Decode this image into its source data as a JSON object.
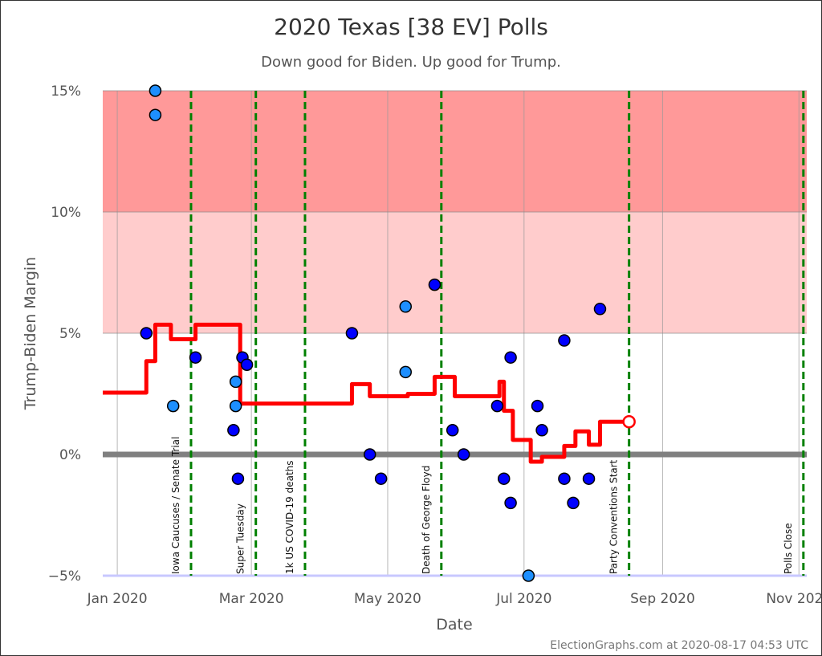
{
  "chart_data": {
    "type": "scatter",
    "title": "2020 Texas [38 EV] Polls",
    "subtitle": "Down good for Biden. Up good for Trump.",
    "xlabel": "Date",
    "ylabel": "Trump-Biden Margin",
    "footer": "ElectionGraphs.com at 2020-08-17 04:53 UTC",
    "xlim": [
      "2019-12-25T12:00",
      "2020-11-04T12:00"
    ],
    "ylim": [
      -5,
      15
    ],
    "x_ticks": [
      {
        "date": "2020-01-01",
        "label": "Jan 2020"
      },
      {
        "date": "2020-03-01",
        "label": "Mar 2020"
      },
      {
        "date": "2020-05-01",
        "label": "May 2020"
      },
      {
        "date": "2020-07-01",
        "label": "Jul 2020"
      },
      {
        "date": "2020-09-01",
        "label": "Sep 2020"
      },
      {
        "date": "2020-11-01",
        "label": "Nov 2020"
      }
    ],
    "y_ticks": [
      {
        "value": 15,
        "label": "15%"
      },
      {
        "value": 10,
        "label": "10%"
      },
      {
        "value": 5,
        "label": "5%"
      },
      {
        "value": 0,
        "label": "0%"
      },
      {
        "value": -5,
        "label": "−5%"
      }
    ],
    "grid": true,
    "bands": [
      {
        "from": 10,
        "to": 15,
        "color": "#ff9999"
      },
      {
        "from": 5,
        "to": 10,
        "color": "#ffcccc"
      }
    ],
    "colors": {
      "poll_dark": "#0000ff",
      "poll_light": "#1e8fff",
      "average": "#ff0000",
      "event": "#008000",
      "zero_line": "#808080",
      "bottom_line": "#c8c8ff"
    },
    "polls": [
      {
        "date": "2020-01-14",
        "margin": 5.0,
        "shade": "dark"
      },
      {
        "date": "2020-01-18",
        "margin": 15.0,
        "shade": "light"
      },
      {
        "date": "2020-01-18",
        "margin": 14.0,
        "shade": "light"
      },
      {
        "date": "2020-01-26",
        "margin": 2.0,
        "shade": "light"
      },
      {
        "date": "2020-02-05",
        "margin": 4.0,
        "shade": "dark"
      },
      {
        "date": "2020-02-22",
        "margin": 1.0,
        "shade": "dark"
      },
      {
        "date": "2020-02-23",
        "margin": 3.0,
        "shade": "light"
      },
      {
        "date": "2020-02-23",
        "margin": 2.0,
        "shade": "light"
      },
      {
        "date": "2020-02-24",
        "margin": -1.0,
        "shade": "dark"
      },
      {
        "date": "2020-02-26",
        "margin": 4.0,
        "shade": "dark"
      },
      {
        "date": "2020-02-28",
        "margin": 3.7,
        "shade": "dark"
      },
      {
        "date": "2020-04-15",
        "margin": 5.0,
        "shade": "dark"
      },
      {
        "date": "2020-04-23",
        "margin": 0.0,
        "shade": "dark"
      },
      {
        "date": "2020-04-28",
        "margin": -1.0,
        "shade": "dark"
      },
      {
        "date": "2020-05-09",
        "margin": 6.1,
        "shade": "light"
      },
      {
        "date": "2020-05-09",
        "margin": 3.4,
        "shade": "light"
      },
      {
        "date": "2020-05-22",
        "margin": 7.0,
        "shade": "dark"
      },
      {
        "date": "2020-05-30",
        "margin": 1.0,
        "shade": "dark"
      },
      {
        "date": "2020-06-04",
        "margin": 0.0,
        "shade": "dark"
      },
      {
        "date": "2020-06-19",
        "margin": 2.0,
        "shade": "dark"
      },
      {
        "date": "2020-06-22",
        "margin": -1.0,
        "shade": "dark"
      },
      {
        "date": "2020-06-25",
        "margin": 4.0,
        "shade": "dark"
      },
      {
        "date": "2020-06-25",
        "margin": -2.0,
        "shade": "dark"
      },
      {
        "date": "2020-07-03",
        "margin": -5.0,
        "shade": "light"
      },
      {
        "date": "2020-07-07",
        "margin": 2.0,
        "shade": "dark"
      },
      {
        "date": "2020-07-09",
        "margin": 1.0,
        "shade": "dark"
      },
      {
        "date": "2020-07-19",
        "margin": 4.7,
        "shade": "dark"
      },
      {
        "date": "2020-07-19",
        "margin": -1.0,
        "shade": "dark"
      },
      {
        "date": "2020-07-23",
        "margin": -2.0,
        "shade": "dark"
      },
      {
        "date": "2020-07-30",
        "margin": -1.0,
        "shade": "dark"
      },
      {
        "date": "2020-08-04",
        "margin": 6.0,
        "shade": "dark"
      }
    ],
    "average": [
      {
        "date": "2019-12-25T12:00",
        "margin": 2.55
      },
      {
        "date": "2020-01-14",
        "margin": 3.85
      },
      {
        "date": "2020-01-18",
        "margin": 5.35
      },
      {
        "date": "2020-01-25",
        "margin": 4.75
      },
      {
        "date": "2020-02-05",
        "margin": 5.35
      },
      {
        "date": "2020-02-25",
        "margin": 2.1
      },
      {
        "date": "2020-04-15",
        "margin": 2.9
      },
      {
        "date": "2020-04-23",
        "margin": 2.4
      },
      {
        "date": "2020-05-10",
        "margin": 2.5
      },
      {
        "date": "2020-05-22",
        "margin": 3.2
      },
      {
        "date": "2020-05-31",
        "margin": 2.4
      },
      {
        "date": "2020-06-20",
        "margin": 3.0
      },
      {
        "date": "2020-06-22",
        "margin": 1.8
      },
      {
        "date": "2020-06-26",
        "margin": 0.6
      },
      {
        "date": "2020-07-04",
        "margin": -0.3
      },
      {
        "date": "2020-07-09",
        "margin": -0.1
      },
      {
        "date": "2020-07-19",
        "margin": 0.35
      },
      {
        "date": "2020-07-24",
        "margin": 0.95
      },
      {
        "date": "2020-07-30",
        "margin": 0.4
      },
      {
        "date": "2020-08-04",
        "margin": 1.35
      },
      {
        "date": "2020-08-17",
        "margin": 1.35
      }
    ],
    "events": [
      {
        "date": "2020-02-03",
        "label": "Iowa Caucuses / Senate Trial"
      },
      {
        "date": "2020-03-03",
        "label": "Super Tuesday"
      },
      {
        "date": "2020-03-25",
        "label": "1k US COVID-19 deaths"
      },
      {
        "date": "2020-05-25",
        "label": "Death of George Floyd"
      },
      {
        "date": "2020-08-17",
        "label": "Party Conventions Start"
      },
      {
        "date": "2020-11-03",
        "label": "Polls Close"
      }
    ]
  }
}
